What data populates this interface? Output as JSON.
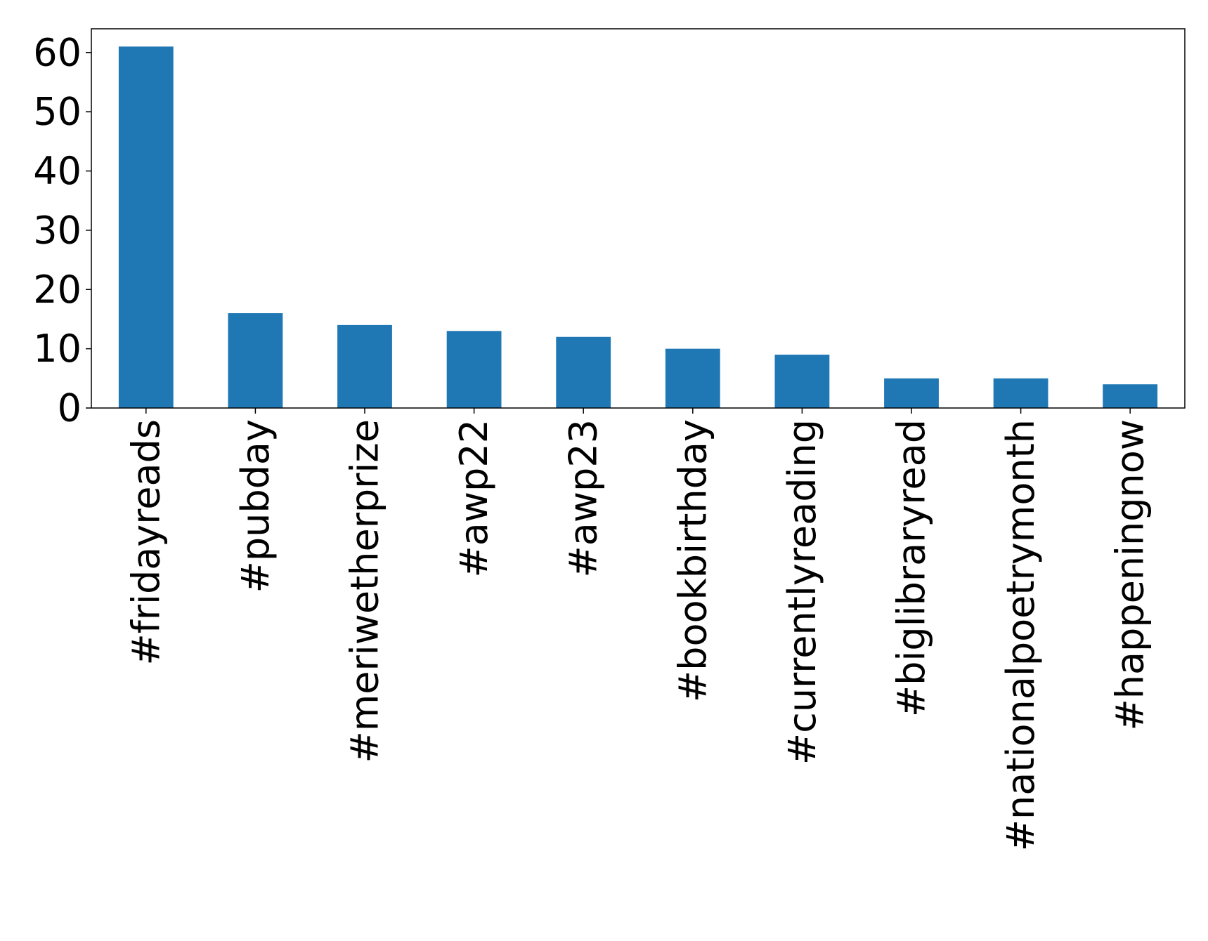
{
  "chart_data": {
    "type": "bar",
    "title": "",
    "xlabel": "",
    "ylabel": "",
    "categories": [
      "#fridayreads",
      "#pubday",
      "#meriwetherprize",
      "#awp22",
      "#awp23",
      "#bookbirthday",
      "#currentlyreading",
      "#biglibraryread",
      "#nationalpoetrymonth",
      "#happeningnow"
    ],
    "values": [
      61,
      16,
      14,
      13,
      12,
      10,
      9,
      5,
      5,
      4
    ],
    "ylim": [
      0,
      64
    ],
    "yticks": [
      0,
      10,
      20,
      30,
      40,
      50,
      60
    ],
    "bar_color": "#1f77b4",
    "grid": false,
    "legend": false,
    "x_tick_rotation": "vertical"
  }
}
